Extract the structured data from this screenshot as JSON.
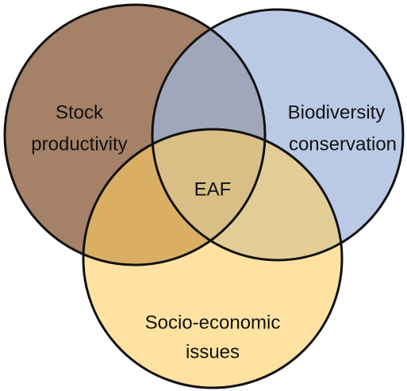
{
  "sets": [
    {
      "label_lines": [
        "Stock",
        "productivity"
      ]
    },
    {
      "label_lines": [
        "Biodiversity",
        "conservation"
      ]
    },
    {
      "label_lines": [
        "Socio-economic",
        "issues"
      ]
    }
  ],
  "center": "EAF"
}
